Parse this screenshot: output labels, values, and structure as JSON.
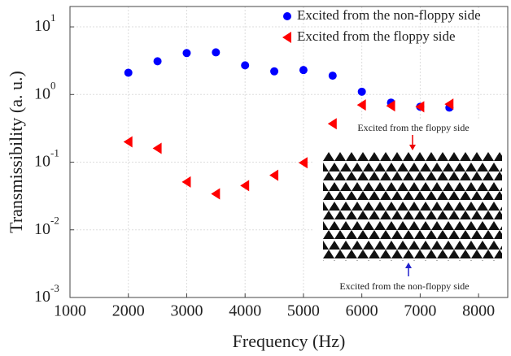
{
  "chart_data": {
    "type": "scatter",
    "xlabel": "Frequency (Hz)",
    "ylabel": "Transmissibility (a. u.)",
    "xlim": [
      1000,
      8500
    ],
    "xticks": [
      1000,
      2000,
      3000,
      4000,
      5000,
      6000,
      7000,
      8000
    ],
    "ylim": [
      0.001,
      20
    ],
    "yscale": "log",
    "yticks": [
      {
        "value": 0.001,
        "label": "10",
        "sup": "-3"
      },
      {
        "value": 0.01,
        "label": "10",
        "sup": "-2"
      },
      {
        "value": 0.1,
        "label": "10",
        "sup": "-1"
      },
      {
        "value": 1,
        "label": "10",
        "sup": "0"
      },
      {
        "value": 10,
        "label": "10",
        "sup": "1"
      }
    ],
    "grid": true,
    "legend": "upper right",
    "x": [
      2000,
      2500,
      3000,
      3500,
      4000,
      4500,
      5000,
      5500,
      6000,
      6500,
      7000,
      7500
    ],
    "series": [
      {
        "name": "Excited from the non-floppy side",
        "color": "#0000ff",
        "marker": "circle",
        "values": [
          2.1,
          3.1,
          4.1,
          4.2,
          2.7,
          2.2,
          2.3,
          1.9,
          1.1,
          0.76,
          0.66,
          0.64
        ]
      },
      {
        "name": "Excited from the floppy side",
        "color": "#ff0000",
        "marker": "triangle-left",
        "values": [
          0.2,
          0.16,
          0.051,
          0.034,
          0.045,
          0.064,
          0.098,
          0.37,
          0.7,
          0.68,
          0.66,
          0.72
        ]
      }
    ],
    "annotations": [
      "Excited from the floppy side",
      "Excited from the non-floppy side"
    ]
  }
}
